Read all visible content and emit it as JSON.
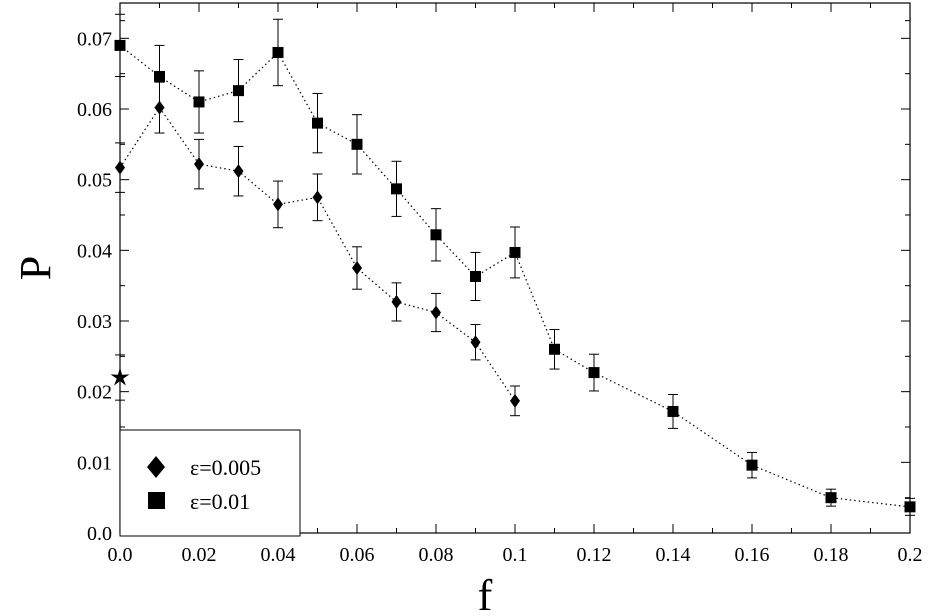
{
  "chart_data": {
    "type": "scatter",
    "title": "",
    "xlabel": "f",
    "ylabel": "P",
    "xlim": [
      0,
      0.2
    ],
    "ylim": [
      0,
      0.075
    ],
    "grid": false,
    "legend_position": "bottom-left",
    "x_ticks": [
      {
        "value": 0,
        "label": "0.0"
      },
      {
        "value": 0.02,
        "label": "0.02"
      },
      {
        "value": 0.04,
        "label": "0.04"
      },
      {
        "value": 0.06,
        "label": "0.06"
      },
      {
        "value": 0.08,
        "label": "0.08"
      },
      {
        "value": 0.1,
        "label": "0.1"
      },
      {
        "value": 0.12,
        "label": "0.12"
      },
      {
        "value": 0.14,
        "label": "0.14"
      },
      {
        "value": 0.16,
        "label": "0.16"
      },
      {
        "value": 0.18,
        "label": "0.18"
      },
      {
        "value": 0.2,
        "label": "0.2"
      }
    ],
    "y_ticks": [
      {
        "value": 0,
        "label": "0.0"
      },
      {
        "value": 0.01,
        "label": "0.01"
      },
      {
        "value": 0.02,
        "label": "0.02"
      },
      {
        "value": 0.03,
        "label": "0.03"
      },
      {
        "value": 0.04,
        "label": "0.04"
      },
      {
        "value": 0.05,
        "label": "0.05"
      },
      {
        "value": 0.06,
        "label": "0.06"
      },
      {
        "value": 0.07,
        "label": "0.07"
      }
    ],
    "series": [
      {
        "name": "ε=0.005",
        "marker": "diamond",
        "line_style": "dotted",
        "x": [
          0,
          0.01,
          0.02,
          0.03,
          0.04,
          0.05,
          0.06,
          0.07,
          0.08,
          0.09,
          0.1
        ],
        "y": [
          0.0517,
          0.0602,
          0.0522,
          0.0512,
          0.0465,
          0.0475,
          0.0375,
          0.0327,
          0.0312,
          0.027,
          0.0187
        ],
        "err": [
          0.0035,
          0.0036,
          0.0035,
          0.0035,
          0.0033,
          0.0033,
          0.003,
          0.0027,
          0.0027,
          0.0025,
          0.0021
        ]
      },
      {
        "name": "ε=0.01",
        "marker": "square",
        "line_style": "dotted",
        "x": [
          0,
          0.01,
          0.02,
          0.03,
          0.04,
          0.05,
          0.06,
          0.07,
          0.08,
          0.09,
          0.1,
          0.11,
          0.12,
          0.14,
          0.16,
          0.18,
          0.2
        ],
        "y": [
          0.069,
          0.0646,
          0.061,
          0.0626,
          0.068,
          0.058,
          0.055,
          0.0487,
          0.0422,
          0.0363,
          0.0397,
          0.026,
          0.0227,
          0.0172,
          0.0096,
          0.005,
          0.0037
        ],
        "err": [
          0.0044,
          0.0044,
          0.0044,
          0.0044,
          0.0047,
          0.0042,
          0.0042,
          0.0039,
          0.0037,
          0.0034,
          0.0036,
          0.0028,
          0.0026,
          0.0024,
          0.0018,
          0.0012,
          0.0012
        ]
      },
      {
        "name": "",
        "marker": "star",
        "line_style": "none",
        "x": [
          0
        ],
        "y": [
          0.022
        ],
        "err": [
          0.0032
        ]
      }
    ]
  }
}
